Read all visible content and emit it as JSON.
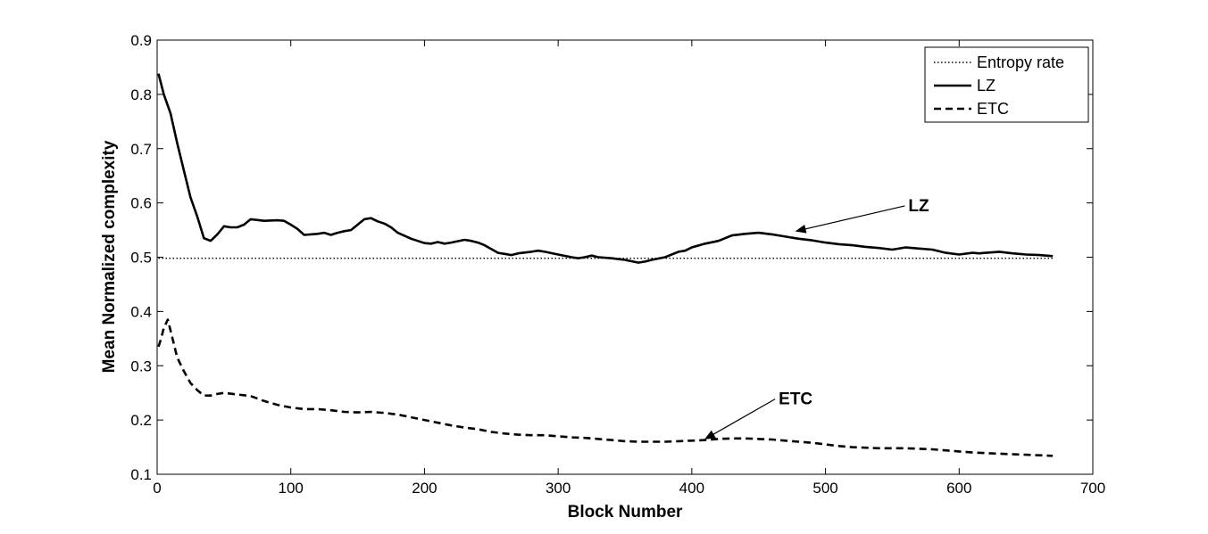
{
  "chart_data": {
    "type": "line",
    "title": "",
    "xlabel": "Block Number",
    "ylabel": "Mean Normalized complexity",
    "xlim": [
      0,
      700
    ],
    "ylim": [
      0.1,
      0.9
    ],
    "xticks": [
      "0",
      "100",
      "200",
      "300",
      "400",
      "500",
      "600",
      "700"
    ],
    "yticks": [
      "0.1",
      "0.2",
      "0.3",
      "0.4",
      "0.5",
      "0.6",
      "0.7",
      "0.8",
      "0.9"
    ],
    "grid": false,
    "legend_position": "top-right",
    "series": [
      {
        "name": "Entropy rate",
        "style": "dotted",
        "color": "#000000",
        "x": [
          1,
          670
        ],
        "y": [
          0.498,
          0.498
        ]
      },
      {
        "name": "LZ",
        "style": "solid",
        "color": "#000000",
        "x": [
          1,
          5,
          10,
          15,
          20,
          25,
          30,
          35,
          40,
          45,
          50,
          55,
          60,
          65,
          70,
          80,
          90,
          95,
          100,
          105,
          110,
          120,
          125,
          130,
          135,
          140,
          145,
          150,
          155,
          160,
          165,
          170,
          175,
          180,
          190,
          200,
          205,
          210,
          215,
          220,
          230,
          235,
          240,
          245,
          250,
          255,
          260,
          265,
          270,
          280,
          285,
          290,
          300,
          310,
          315,
          320,
          325,
          330,
          340,
          350,
          360,
          365,
          370,
          380,
          390,
          395,
          400,
          410,
          420,
          430,
          440,
          450,
          460,
          470,
          480,
          490,
          500,
          510,
          520,
          530,
          540,
          550,
          560,
          570,
          580,
          590,
          600,
          610,
          615,
          620,
          630,
          640,
          650,
          660,
          670
        ],
        "y": [
          0.838,
          0.8,
          0.765,
          0.71,
          0.66,
          0.61,
          0.575,
          0.535,
          0.53,
          0.542,
          0.557,
          0.555,
          0.555,
          0.56,
          0.57,
          0.567,
          0.568,
          0.567,
          0.56,
          0.552,
          0.541,
          0.543,
          0.545,
          0.541,
          0.545,
          0.548,
          0.55,
          0.56,
          0.57,
          0.572,
          0.566,
          0.562,
          0.555,
          0.545,
          0.534,
          0.526,
          0.525,
          0.528,
          0.525,
          0.527,
          0.532,
          0.53,
          0.527,
          0.522,
          0.515,
          0.508,
          0.506,
          0.504,
          0.507,
          0.51,
          0.512,
          0.51,
          0.505,
          0.5,
          0.498,
          0.5,
          0.503,
          0.5,
          0.498,
          0.495,
          0.49,
          0.492,
          0.495,
          0.5,
          0.51,
          0.512,
          0.518,
          0.525,
          0.53,
          0.54,
          0.543,
          0.545,
          0.542,
          0.538,
          0.534,
          0.531,
          0.527,
          0.524,
          0.522,
          0.519,
          0.517,
          0.514,
          0.518,
          0.516,
          0.514,
          0.508,
          0.505,
          0.508,
          0.507,
          0.508,
          0.51,
          0.507,
          0.505,
          0.504,
          0.502
        ]
      },
      {
        "name": "ETC",
        "style": "dashed",
        "color": "#000000",
        "x": [
          1,
          3,
          5,
          8,
          10,
          15,
          20,
          25,
          30,
          35,
          40,
          45,
          50,
          60,
          70,
          80,
          90,
          100,
          110,
          120,
          130,
          140,
          150,
          160,
          170,
          180,
          190,
          200,
          210,
          220,
          230,
          240,
          250,
          260,
          270,
          280,
          290,
          300,
          310,
          320,
          330,
          340,
          350,
          360,
          370,
          380,
          390,
          400,
          410,
          420,
          430,
          440,
          450,
          460,
          470,
          480,
          490,
          500,
          510,
          520,
          530,
          540,
          550,
          560,
          570,
          580,
          590,
          600,
          610,
          620,
          630,
          640,
          650,
          660,
          670
        ],
        "y": [
          0.335,
          0.35,
          0.37,
          0.385,
          0.365,
          0.315,
          0.29,
          0.268,
          0.255,
          0.245,
          0.245,
          0.248,
          0.25,
          0.247,
          0.244,
          0.235,
          0.228,
          0.223,
          0.22,
          0.22,
          0.218,
          0.215,
          0.214,
          0.215,
          0.213,
          0.21,
          0.205,
          0.2,
          0.195,
          0.19,
          0.186,
          0.183,
          0.178,
          0.175,
          0.173,
          0.172,
          0.172,
          0.17,
          0.168,
          0.167,
          0.165,
          0.163,
          0.161,
          0.16,
          0.16,
          0.16,
          0.161,
          0.162,
          0.163,
          0.165,
          0.166,
          0.166,
          0.165,
          0.164,
          0.162,
          0.16,
          0.158,
          0.155,
          0.152,
          0.15,
          0.149,
          0.148,
          0.148,
          0.148,
          0.147,
          0.146,
          0.144,
          0.142,
          0.14,
          0.139,
          0.138,
          0.137,
          0.136,
          0.135,
          0.134
        ]
      }
    ],
    "annotations": [
      {
        "text": "LZ",
        "target_x": 478,
        "target_y": 0.548,
        "label_x": 562,
        "label_y": 0.588
      },
      {
        "text": "ETC",
        "target_x": 410,
        "target_y": 0.165,
        "label_x": 465,
        "label_y": 0.232
      }
    ]
  }
}
